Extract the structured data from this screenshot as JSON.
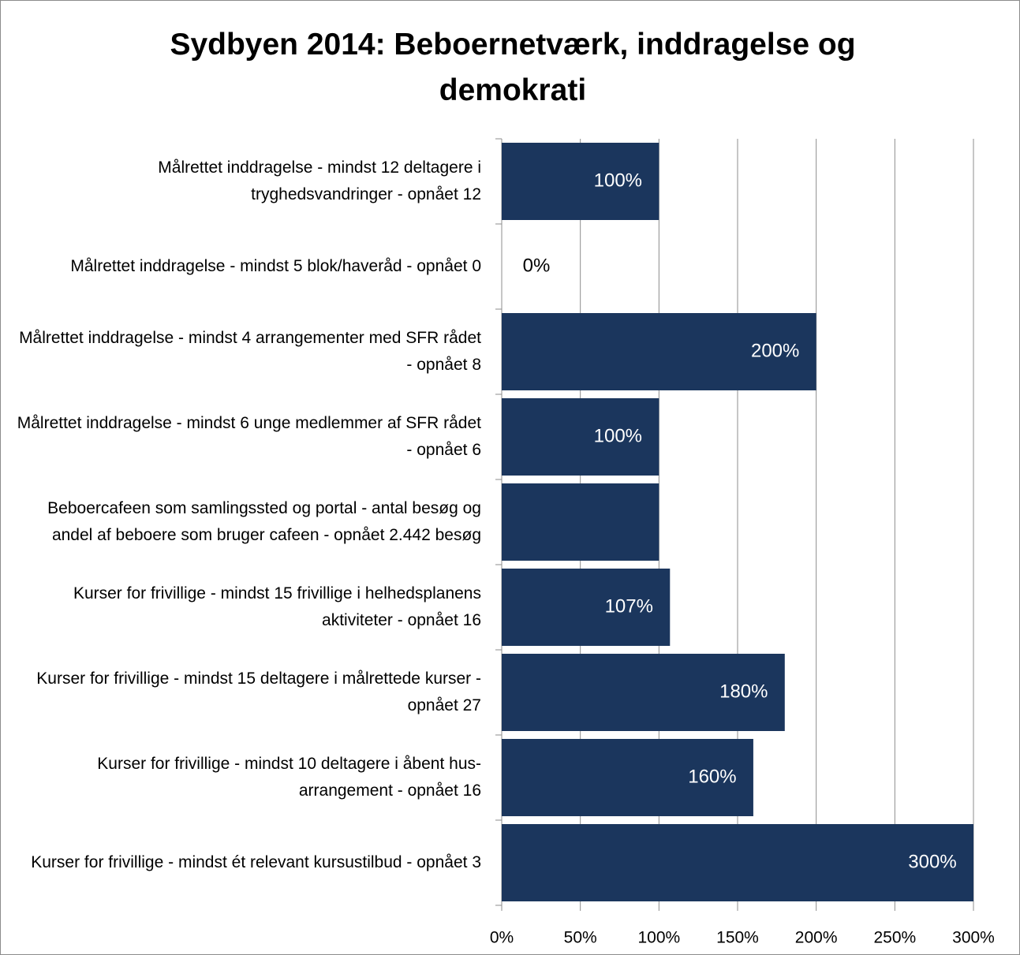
{
  "chart_data": {
    "type": "barh",
    "title": "Sydbyen 2014: Beboernetværk, inddragelse og demokrati",
    "categories": [
      "Målrettet inddragelse - mindst 12 deltagere i tryghedsvandringer - opnået 12",
      "Målrettet inddragelse - mindst 5 blok/haveråd - opnået 0",
      "Målrettet inddragelse - mindst 4 arrangementer med SFR rådet - opnået 8",
      "Målrettet inddragelse - mindst 6 unge medlemmer af SFR rådet - opnået 6",
      "Beboercafeen som samlingssted og portal - antal besøg og andel af beboere som bruger cafeen - opnået 2.442 besøg",
      "Kurser for frivillige - mindst 15 frivillige i helhedsplanens aktiviteter - opnået 16",
      "Kurser for frivillige - mindst 15 deltagere i målrettede kurser - opnået 27",
      "Kurser for frivillige - mindst 10 deltagere i åbent hus-arrangement - opnået 16",
      "Kurser for frivillige - mindst ét relevant kursustilbud - opnået 3"
    ],
    "values": [
      100,
      0,
      200,
      100,
      100,
      107,
      180,
      160,
      300
    ],
    "value_labels": [
      "100%",
      "0%",
      "200%",
      "100%",
      null,
      "107%",
      "180%",
      "160%",
      "300%"
    ],
    "color": "#1b365d",
    "xlim": [
      0,
      300
    ],
    "xticks": [
      {
        "value": 0,
        "label": "0%"
      },
      {
        "value": 50,
        "label": "50%"
      },
      {
        "value": 100,
        "label": "100%"
      },
      {
        "value": 150,
        "label": "150%"
      },
      {
        "value": 200,
        "label": "200%"
      },
      {
        "value": 250,
        "label": "250%"
      },
      {
        "value": 300,
        "label": "300%"
      }
    ],
    "grid": true
  }
}
